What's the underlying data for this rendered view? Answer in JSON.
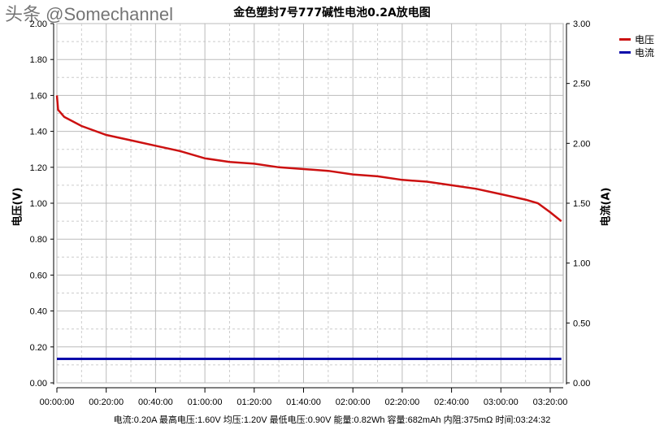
{
  "chart_data": {
    "type": "line",
    "title": "金色塑封7号777碱性电池0.2A放电图",
    "xlabel": "",
    "ylabel": "电压(V)",
    "y2label": "电流(A)",
    "x_unit": "minutes",
    "xlim": [
      0,
      204.5
    ],
    "ylim": [
      0,
      2.0
    ],
    "y2lim": [
      0,
      3.0
    ],
    "x_ticks": [
      "00:00:00",
      "00:20:00",
      "00:40:00",
      "01:00:00",
      "01:20:00",
      "01:40:00",
      "02:00:00",
      "02:20:00",
      "02:40:00",
      "03:00:00",
      "03:20:00"
    ],
    "y_ticks": [
      "0.00",
      "0.20",
      "0.40",
      "0.60",
      "0.80",
      "1.00",
      "1.20",
      "1.40",
      "1.60",
      "1.80",
      "2.00"
    ],
    "y2_ticks": [
      "0.00",
      "0.50",
      "1.00",
      "1.50",
      "2.00",
      "2.50",
      "3.00"
    ],
    "grid": true,
    "legend": "top-right",
    "series": [
      {
        "name": "电压",
        "axis": "left",
        "color": "#cc1111",
        "x": [
          0,
          0.5,
          3,
          10,
          20,
          30,
          40,
          50,
          60,
          70,
          80,
          90,
          100,
          110,
          120,
          130,
          140,
          150,
          160,
          170,
          180,
          190,
          195,
          200,
          204.5
        ],
        "values": [
          1.6,
          1.52,
          1.48,
          1.43,
          1.38,
          1.35,
          1.32,
          1.29,
          1.25,
          1.23,
          1.22,
          1.2,
          1.19,
          1.18,
          1.16,
          1.15,
          1.13,
          1.12,
          1.1,
          1.08,
          1.05,
          1.02,
          1.0,
          0.95,
          0.9
        ]
      },
      {
        "name": "电流",
        "axis": "right",
        "color": "#0a0aaa",
        "x": [
          0,
          204.5
        ],
        "values": [
          0.2,
          0.2
        ]
      }
    ]
  },
  "summary": "电流:0.20A 最高电压:1.60V 均压:1.20V 最低电压:0.90V 能量:0.82Wh 容量:682mAh 内阻:375mΩ 时间:03:24:32",
  "watermark": "头条 @Somechannel"
}
